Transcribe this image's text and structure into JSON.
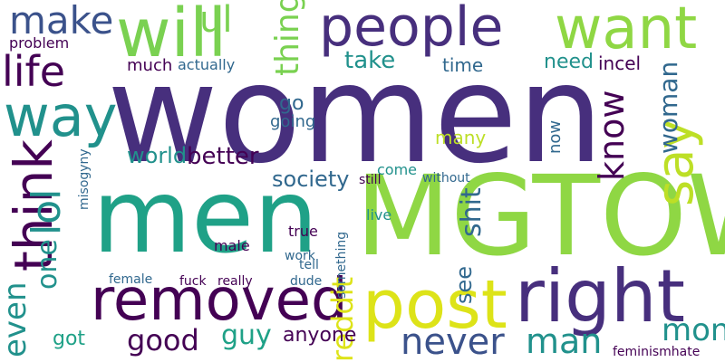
{
  "palette": {
    "dark_purple": "#472f7d",
    "deep_purple": "#440154",
    "blue": "#3b528b",
    "slate": "#31688e",
    "teal": "#21918c",
    "green_teal": "#1fa187",
    "green": "#35b779",
    "light_green": "#8fd744",
    "lime": "#7ad151",
    "yellow_green": "#bddf26",
    "yellow": "#dde318"
  },
  "words": [
    "women",
    "MGTOW",
    "men",
    "removed",
    "post",
    "right",
    "people",
    "want",
    "will",
    "way",
    "life",
    "make",
    "think",
    "say",
    "lol",
    "even",
    "one",
    "thing",
    "ul",
    "know",
    "woman",
    "reddit",
    "shit",
    "see",
    "never",
    "man",
    "money",
    "good",
    "guy",
    "anyone",
    "better",
    "society",
    "world",
    "take",
    "need",
    "time",
    "incel",
    "go",
    "going",
    "much",
    "actually",
    "problem",
    "got",
    "female",
    "male",
    "fuck",
    "really",
    "dude",
    "true",
    "work",
    "tell",
    "live",
    "come",
    "without",
    "still",
    "many",
    "now",
    "something",
    "misogyny",
    "feminismhate"
  ]
}
